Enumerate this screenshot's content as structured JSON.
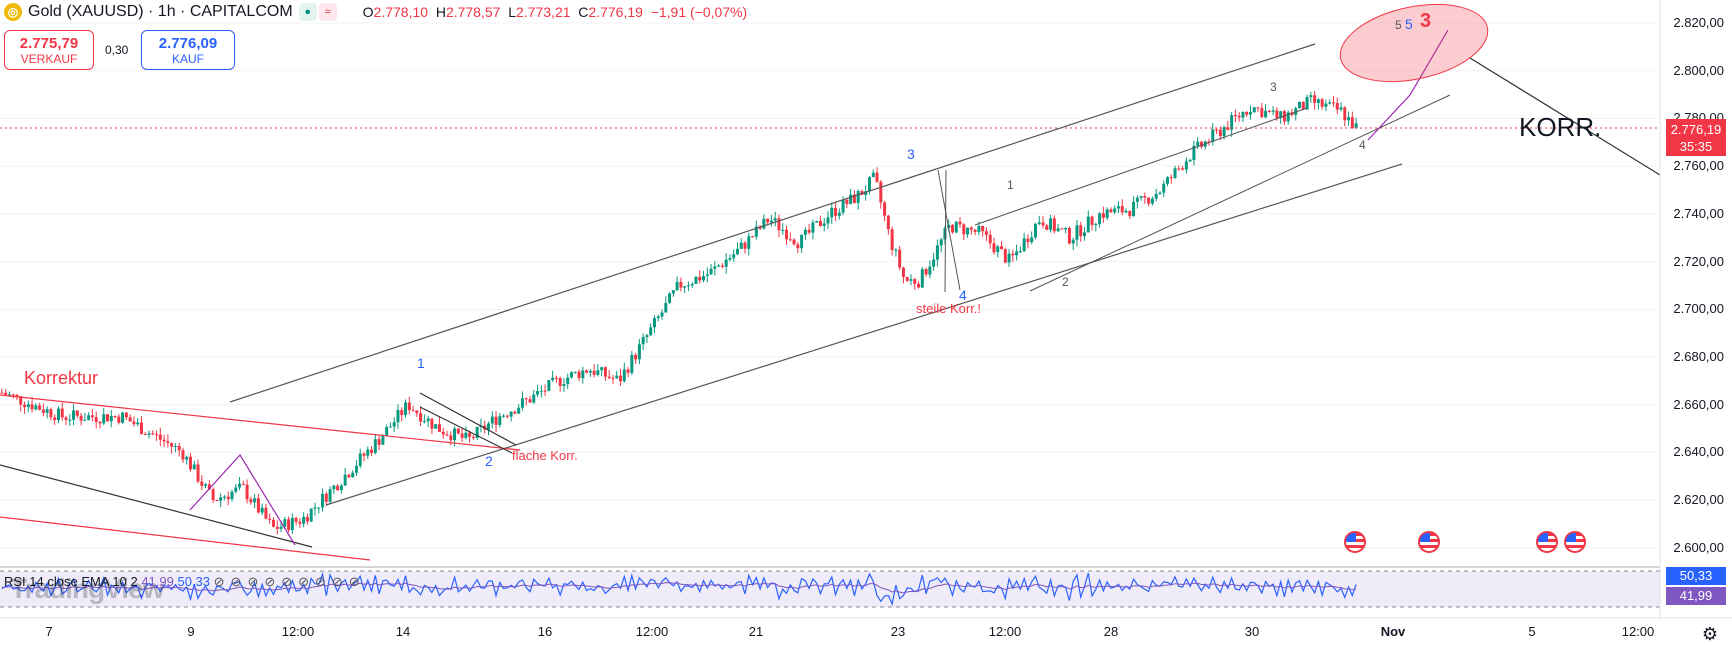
{
  "header": {
    "symbol": "Gold (XAUUSD) · 1h · CAPITALCOM",
    "logo": "coin-icon",
    "open_label": "O",
    "open": "2.778,10",
    "high_label": "H",
    "high": "2.778,57",
    "low_label": "L",
    "low": "2.773,21",
    "close_label": "C",
    "close": "2.776,19",
    "change": "−1,91 (−0,07%)"
  },
  "trade": {
    "sell_price": "2.775,79",
    "sell_label": "VERKAUF",
    "spread": "0,30",
    "buy_price": "2.776,09",
    "buy_label": "KAUF"
  },
  "price_axis": [
    "2.820,00",
    "2.800,00",
    "2.780,00",
    "2.760,00",
    "2.740,00",
    "2.720,00",
    "2.700,00",
    "2.680,00",
    "2.660,00",
    "2.640,00",
    "2.620,00",
    "2.600,00"
  ],
  "current_price": {
    "value": "2.776,19",
    "countdown": "35:35"
  },
  "time_axis": [
    "7",
    "9",
    "12:00",
    "14",
    "16",
    "12:00",
    "21",
    "23",
    "12:00",
    "28",
    "30",
    "Nov",
    "5",
    "12:00"
  ],
  "rsi": {
    "header_prefix": "RSI 14 close EMA 10 2",
    "value1": "41,99",
    "value2": "50,33",
    "tag1": "50,33",
    "tag2": "41,99"
  },
  "watermark": "TradingView",
  "annotations": {
    "korrektur": "Korrektur",
    "flache": "flache Korr.",
    "steile": "steile Korr.!",
    "korr": "KORR.",
    "w1": "1",
    "w2": "2",
    "w3": "3",
    "w4": "4",
    "s1": "1",
    "s2": "2",
    "s3": "3",
    "s4": "4",
    "t5a": "5",
    "t5b": "5",
    "t3": "3"
  },
  "colors": {
    "up": "#089981",
    "down": "#f23645",
    "rsi": "#2962ff",
    "rsi_ma": "#7e57c2"
  },
  "chart_data": {
    "type": "candlestick",
    "title": "Gold (XAUUSD) · 1h · CAPITALCOM",
    "ylim": [
      2595,
      2825
    ],
    "close_path": [
      [
        0,
        2665
      ],
      [
        4,
        2655
      ],
      [
        8,
        2655
      ],
      [
        12,
        2640
      ],
      [
        14,
        2620
      ],
      [
        16,
        2625
      ],
      [
        18,
        2608
      ],
      [
        20,
        2612
      ],
      [
        22,
        2625
      ],
      [
        25,
        2645
      ],
      [
        27,
        2660
      ],
      [
        29,
        2650
      ],
      [
        31,
        2645
      ],
      [
        33,
        2655
      ],
      [
        35,
        2662
      ],
      [
        37,
        2670
      ],
      [
        39,
        2675
      ],
      [
        41,
        2670
      ],
      [
        43,
        2690
      ],
      [
        45,
        2710
      ],
      [
        47,
        2715
      ],
      [
        49,
        2725
      ],
      [
        51,
        2738
      ],
      [
        53,
        2728
      ],
      [
        55,
        2740
      ],
      [
        57,
        2748
      ],
      [
        58,
        2755
      ],
      [
        59,
        2730
      ],
      [
        60,
        2712
      ],
      [
        61,
        2712
      ],
      [
        63,
        2735
      ],
      [
        65,
        2732
      ],
      [
        67,
        2720
      ],
      [
        69,
        2738
      ],
      [
        71,
        2730
      ],
      [
        73,
        2740
      ],
      [
        75,
        2742
      ],
      [
        77,
        2750
      ],
      [
        79,
        2765
      ],
      [
        81,
        2775
      ],
      [
        83,
        2785
      ],
      [
        85,
        2780
      ],
      [
        87,
        2787
      ],
      [
        89,
        2783
      ],
      [
        90,
        2776
      ]
    ],
    "rsi_last": 41.99,
    "rsi_ma_last": 50.33
  }
}
